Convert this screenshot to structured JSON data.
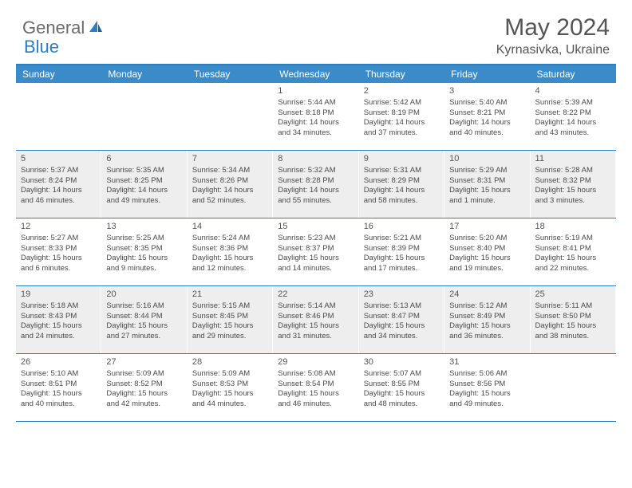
{
  "logo": {
    "part1": "General",
    "part2": "Blue"
  },
  "title": "May 2024",
  "location": "Kyrnasivka, Ukraine",
  "colors": {
    "header_bg": "#3b8bc9",
    "border": "#2a7ec2",
    "alt_bg": "#eeeeee",
    "text": "#4a4a4a",
    "logo_gray": "#6b6b6b",
    "logo_blue": "#2a7ec2"
  },
  "weekdays": [
    "Sunday",
    "Monday",
    "Tuesday",
    "Wednesday",
    "Thursday",
    "Friday",
    "Saturday"
  ],
  "weeks": [
    [
      {
        "num": "",
        "lines": []
      },
      {
        "num": "",
        "lines": []
      },
      {
        "num": "",
        "lines": []
      },
      {
        "num": "1",
        "lines": [
          "Sunrise: 5:44 AM",
          "Sunset: 8:18 PM",
          "Daylight: 14 hours",
          "and 34 minutes."
        ]
      },
      {
        "num": "2",
        "lines": [
          "Sunrise: 5:42 AM",
          "Sunset: 8:19 PM",
          "Daylight: 14 hours",
          "and 37 minutes."
        ]
      },
      {
        "num": "3",
        "lines": [
          "Sunrise: 5:40 AM",
          "Sunset: 8:21 PM",
          "Daylight: 14 hours",
          "and 40 minutes."
        ]
      },
      {
        "num": "4",
        "lines": [
          "Sunrise: 5:39 AM",
          "Sunset: 8:22 PM",
          "Daylight: 14 hours",
          "and 43 minutes."
        ]
      }
    ],
    [
      {
        "num": "5",
        "lines": [
          "Sunrise: 5:37 AM",
          "Sunset: 8:24 PM",
          "Daylight: 14 hours",
          "and 46 minutes."
        ]
      },
      {
        "num": "6",
        "lines": [
          "Sunrise: 5:35 AM",
          "Sunset: 8:25 PM",
          "Daylight: 14 hours",
          "and 49 minutes."
        ]
      },
      {
        "num": "7",
        "lines": [
          "Sunrise: 5:34 AM",
          "Sunset: 8:26 PM",
          "Daylight: 14 hours",
          "and 52 minutes."
        ]
      },
      {
        "num": "8",
        "lines": [
          "Sunrise: 5:32 AM",
          "Sunset: 8:28 PM",
          "Daylight: 14 hours",
          "and 55 minutes."
        ]
      },
      {
        "num": "9",
        "lines": [
          "Sunrise: 5:31 AM",
          "Sunset: 8:29 PM",
          "Daylight: 14 hours",
          "and 58 minutes."
        ]
      },
      {
        "num": "10",
        "lines": [
          "Sunrise: 5:29 AM",
          "Sunset: 8:31 PM",
          "Daylight: 15 hours",
          "and 1 minute."
        ]
      },
      {
        "num": "11",
        "lines": [
          "Sunrise: 5:28 AM",
          "Sunset: 8:32 PM",
          "Daylight: 15 hours",
          "and 3 minutes."
        ]
      }
    ],
    [
      {
        "num": "12",
        "lines": [
          "Sunrise: 5:27 AM",
          "Sunset: 8:33 PM",
          "Daylight: 15 hours",
          "and 6 minutes."
        ]
      },
      {
        "num": "13",
        "lines": [
          "Sunrise: 5:25 AM",
          "Sunset: 8:35 PM",
          "Daylight: 15 hours",
          "and 9 minutes."
        ]
      },
      {
        "num": "14",
        "lines": [
          "Sunrise: 5:24 AM",
          "Sunset: 8:36 PM",
          "Daylight: 15 hours",
          "and 12 minutes."
        ]
      },
      {
        "num": "15",
        "lines": [
          "Sunrise: 5:23 AM",
          "Sunset: 8:37 PM",
          "Daylight: 15 hours",
          "and 14 minutes."
        ]
      },
      {
        "num": "16",
        "lines": [
          "Sunrise: 5:21 AM",
          "Sunset: 8:39 PM",
          "Daylight: 15 hours",
          "and 17 minutes."
        ]
      },
      {
        "num": "17",
        "lines": [
          "Sunrise: 5:20 AM",
          "Sunset: 8:40 PM",
          "Daylight: 15 hours",
          "and 19 minutes."
        ]
      },
      {
        "num": "18",
        "lines": [
          "Sunrise: 5:19 AM",
          "Sunset: 8:41 PM",
          "Daylight: 15 hours",
          "and 22 minutes."
        ]
      }
    ],
    [
      {
        "num": "19",
        "lines": [
          "Sunrise: 5:18 AM",
          "Sunset: 8:43 PM",
          "Daylight: 15 hours",
          "and 24 minutes."
        ]
      },
      {
        "num": "20",
        "lines": [
          "Sunrise: 5:16 AM",
          "Sunset: 8:44 PM",
          "Daylight: 15 hours",
          "and 27 minutes."
        ]
      },
      {
        "num": "21",
        "lines": [
          "Sunrise: 5:15 AM",
          "Sunset: 8:45 PM",
          "Daylight: 15 hours",
          "and 29 minutes."
        ]
      },
      {
        "num": "22",
        "lines": [
          "Sunrise: 5:14 AM",
          "Sunset: 8:46 PM",
          "Daylight: 15 hours",
          "and 31 minutes."
        ]
      },
      {
        "num": "23",
        "lines": [
          "Sunrise: 5:13 AM",
          "Sunset: 8:47 PM",
          "Daylight: 15 hours",
          "and 34 minutes."
        ]
      },
      {
        "num": "24",
        "lines": [
          "Sunrise: 5:12 AM",
          "Sunset: 8:49 PM",
          "Daylight: 15 hours",
          "and 36 minutes."
        ]
      },
      {
        "num": "25",
        "lines": [
          "Sunrise: 5:11 AM",
          "Sunset: 8:50 PM",
          "Daylight: 15 hours",
          "and 38 minutes."
        ]
      }
    ],
    [
      {
        "num": "26",
        "lines": [
          "Sunrise: 5:10 AM",
          "Sunset: 8:51 PM",
          "Daylight: 15 hours",
          "and 40 minutes."
        ]
      },
      {
        "num": "27",
        "lines": [
          "Sunrise: 5:09 AM",
          "Sunset: 8:52 PM",
          "Daylight: 15 hours",
          "and 42 minutes."
        ]
      },
      {
        "num": "28",
        "lines": [
          "Sunrise: 5:09 AM",
          "Sunset: 8:53 PM",
          "Daylight: 15 hours",
          "and 44 minutes."
        ]
      },
      {
        "num": "29",
        "lines": [
          "Sunrise: 5:08 AM",
          "Sunset: 8:54 PM",
          "Daylight: 15 hours",
          "and 46 minutes."
        ]
      },
      {
        "num": "30",
        "lines": [
          "Sunrise: 5:07 AM",
          "Sunset: 8:55 PM",
          "Daylight: 15 hours",
          "and 48 minutes."
        ]
      },
      {
        "num": "31",
        "lines": [
          "Sunrise: 5:06 AM",
          "Sunset: 8:56 PM",
          "Daylight: 15 hours",
          "and 49 minutes."
        ]
      },
      {
        "num": "",
        "lines": []
      }
    ]
  ]
}
